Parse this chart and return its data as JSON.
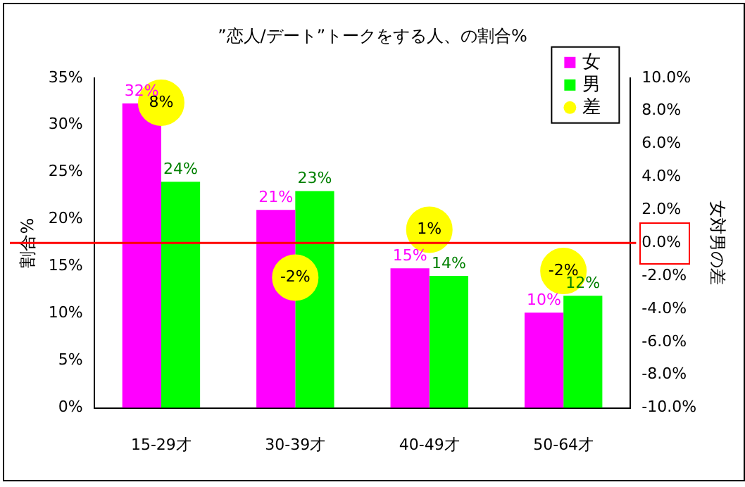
{
  "chart_data": {
    "type": "bar",
    "title": "”恋人/デート”トークをする人、の割合%",
    "ylabel": "割合%",
    "y2label": "女対男の差",
    "categories": [
      "15-29才",
      "30-39才",
      "40-49才",
      "50-64才"
    ],
    "series": [
      {
        "name": "女",
        "color": "#ff00ff",
        "values": [
          32.3,
          21,
          14.8,
          10.1
        ],
        "value_labels": [
          "32%",
          "21%",
          "15%",
          "10%"
        ]
      },
      {
        "name": "男",
        "color": "#00ff00",
        "values": [
          24,
          23,
          14,
          11.9
        ],
        "value_labels": [
          "24%",
          "23%",
          "14%",
          "12%"
        ]
      },
      {
        "name": "差",
        "type": "scatter",
        "axis": "y2",
        "color": "#ffff00",
        "x": [
          "15-29才",
          "30-39才",
          "40-49才",
          "50-64才"
        ],
        "values": [
          8.5,
          -2.1,
          0.8,
          -1.7
        ],
        "value_labels": [
          "8%",
          "-2%",
          "1%",
          "-2%"
        ]
      }
    ],
    "ylim": [
      0,
      35
    ],
    "yticks": [
      {
        "value": 0,
        "label": "0%"
      },
      {
        "value": 5,
        "label": "5%"
      },
      {
        "value": 10,
        "label": "10%"
      },
      {
        "value": 15,
        "label": "15%"
      },
      {
        "value": 20,
        "label": "20%"
      },
      {
        "value": 25,
        "label": "25%"
      },
      {
        "value": 30,
        "label": "30%"
      },
      {
        "value": 35,
        "label": "35%"
      }
    ],
    "y2lim": [
      -10,
      10
    ],
    "y2ticks": [
      {
        "value": -10,
        "label": "-10.0%"
      },
      {
        "value": -8,
        "label": "-8.0%"
      },
      {
        "value": -6,
        "label": "-6.0%"
      },
      {
        "value": -4,
        "label": "-4.0%"
      },
      {
        "value": -2,
        "label": "-2.0%"
      },
      {
        "value": 0,
        "label": "0.0%"
      },
      {
        "value": 2,
        "label": "2.0%"
      },
      {
        "value": 4,
        "label": "4.0%"
      },
      {
        "value": 6,
        "label": "6.0%"
      },
      {
        "value": 8,
        "label": "8.0%"
      },
      {
        "value": 10,
        "label": "10.0%"
      }
    ],
    "ref_lines": [
      {
        "axis": "y2",
        "value": 0,
        "color": "#ff0000"
      }
    ],
    "legend": "top right",
    "grid": false,
    "marker": "circle"
  }
}
